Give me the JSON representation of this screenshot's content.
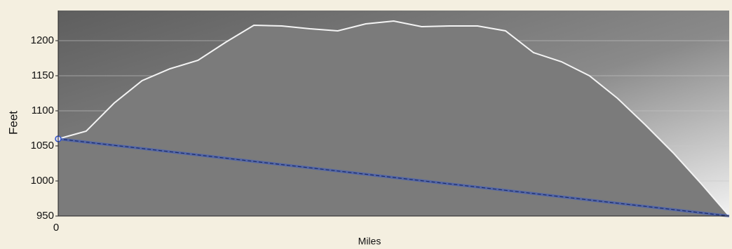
{
  "chart_data": {
    "type": "area",
    "x_label": "Miles",
    "y_label": "Feet",
    "categories": [
      "0",
      null,
      null,
      null,
      null,
      null,
      null,
      null,
      null,
      null,
      null,
      null,
      null,
      null,
      null,
      null,
      null,
      null,
      null,
      null,
      null,
      null,
      null,
      null,
      null
    ],
    "series": [
      {
        "color": "#7b7b7b",
        "values": [
          1060,
          1071,
          1111,
          1143,
          1160,
          1172,
          1198,
          1222,
          1221,
          1217,
          1214,
          1224,
          1228,
          1220,
          1221,
          1221,
          1214,
          1183,
          1170,
          1150,
          1118,
          1080,
          1040,
          996,
          950
        ]
      },
      {
        "color": "#3355cc",
        "values": [
          1060,
          1055.4,
          1050.8,
          1046.3,
          1041.7,
          1037.1,
          1032.5,
          1027.9,
          1023.3,
          1018.8,
          1014.2,
          1009.6,
          1005,
          1000.4,
          995.8,
          991.3,
          986.7,
          982.1,
          977.5,
          972.9,
          968.3,
          963.8,
          959.2,
          954.6,
          950
        ]
      }
    ],
    "ylim": [
      950,
      1243
    ],
    "yticks": [
      950,
      1000,
      1050,
      1100,
      1150,
      1200
    ],
    "grid": true
  }
}
